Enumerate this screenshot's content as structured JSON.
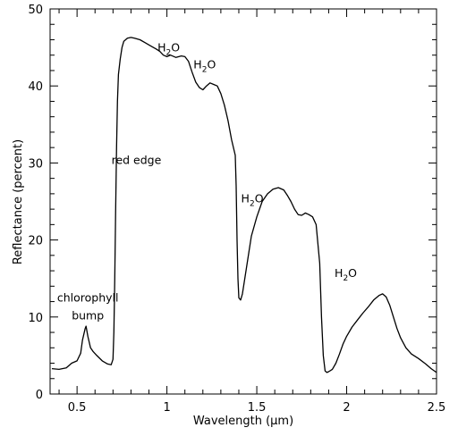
{
  "chart_data": {
    "type": "line",
    "title": "",
    "xlabel": "Wavelength (μm)",
    "ylabel": "Reflectance (percent)",
    "xlim": [
      0.35,
      2.5
    ],
    "ylim": [
      0,
      50
    ],
    "x_ticks": [
      0.5,
      1,
      1.5,
      2,
      2.5
    ],
    "x_tick_labels": [
      "0.5",
      "1",
      "1.5",
      "2",
      "2.5"
    ],
    "y_ticks": [
      0,
      10,
      20,
      30,
      40,
      50
    ],
    "y_tick_labels": [
      "0",
      "10",
      "20",
      "30",
      "40",
      "50"
    ],
    "grid": false,
    "legend": "none",
    "line_color": "#000000",
    "series": [
      {
        "x": [
          0.36,
          0.4,
          0.44,
          0.47,
          0.5,
          0.52,
          0.53,
          0.545,
          0.55,
          0.56,
          0.575,
          0.59,
          0.61,
          0.64,
          0.67,
          0.69,
          0.7,
          0.705,
          0.71,
          0.715,
          0.72,
          0.725,
          0.73,
          0.74,
          0.75,
          0.76,
          0.78,
          0.8,
          0.82,
          0.85,
          0.88,
          0.91,
          0.94,
          0.96,
          0.98,
          1.0,
          1.02,
          1.05,
          1.08,
          1.1,
          1.12,
          1.14,
          1.16,
          1.18,
          1.2,
          1.22,
          1.24,
          1.26,
          1.28,
          1.3,
          1.32,
          1.34,
          1.36,
          1.38,
          1.385,
          1.39,
          1.395,
          1.4,
          1.41,
          1.42,
          1.43,
          1.45,
          1.47,
          1.5,
          1.53,
          1.56,
          1.59,
          1.62,
          1.65,
          1.67,
          1.69,
          1.71,
          1.73,
          1.75,
          1.77,
          1.79,
          1.81,
          1.83,
          1.85,
          1.86,
          1.87,
          1.88,
          1.89,
          1.9,
          1.92,
          1.94,
          1.96,
          1.98,
          2.0,
          2.03,
          2.06,
          2.09,
          2.12,
          2.15,
          2.18,
          2.2,
          2.22,
          2.24,
          2.26,
          2.28,
          2.3,
          2.33,
          2.36,
          2.4,
          2.44,
          2.47,
          2.5
        ],
        "y": [
          3.3,
          3.2,
          3.4,
          4.0,
          4.3,
          5.3,
          7.0,
          8.5,
          8.8,
          7.5,
          6.0,
          5.5,
          5.0,
          4.3,
          3.9,
          3.8,
          4.5,
          8.0,
          15.0,
          24.0,
          32.0,
          38.0,
          41.5,
          43.5,
          45.0,
          45.8,
          46.2,
          46.3,
          46.2,
          46.0,
          45.6,
          45.2,
          44.8,
          44.5,
          44.0,
          43.8,
          44.0,
          43.7,
          43.9,
          43.8,
          43.2,
          41.8,
          40.5,
          39.8,
          39.5,
          40.0,
          40.4,
          40.2,
          40.0,
          39.0,
          37.5,
          35.5,
          33.0,
          31.0,
          27.0,
          20.0,
          15.0,
          12.5,
          12.2,
          13.0,
          14.5,
          17.5,
          20.5,
          23.0,
          25.0,
          26.0,
          26.6,
          26.8,
          26.5,
          25.8,
          25.0,
          24.0,
          23.3,
          23.2,
          23.5,
          23.3,
          23.0,
          22.0,
          17.0,
          10.0,
          5.0,
          3.0,
          2.8,
          2.9,
          3.2,
          4.0,
          5.2,
          6.5,
          7.5,
          8.7,
          9.6,
          10.5,
          11.3,
          12.2,
          12.8,
          13.0,
          12.6,
          11.5,
          10.0,
          8.5,
          7.3,
          6.0,
          5.2,
          4.6,
          3.9,
          3.3,
          2.8
        ]
      }
    ],
    "annotations": [
      {
        "text": "chlorophyll",
        "x": 0.56,
        "y": 12.0
      },
      {
        "text": "bump",
        "x": 0.56,
        "y": 9.7
      },
      {
        "text": "red edge",
        "x": 0.83,
        "y": 29.9
      },
      {
        "text": "H2O",
        "x": 1.01,
        "y": 44.5
      },
      {
        "text": "H2O",
        "x": 1.21,
        "y": 42.3
      },
      {
        "text": "H2O",
        "x": 1.475,
        "y": 24.9
      },
      {
        "text": "H2O",
        "x": 1.995,
        "y": 15.2
      }
    ]
  }
}
